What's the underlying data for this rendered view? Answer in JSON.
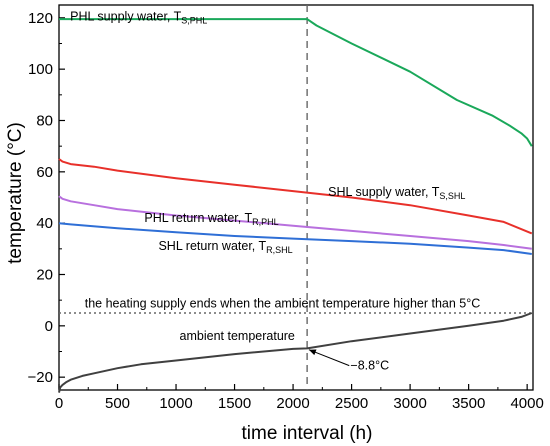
{
  "chart_data": {
    "type": "line",
    "xlabel": "time interval (h)",
    "ylabel": "temperature (°C)",
    "xlim": [
      0,
      4050
    ],
    "ylim": [
      -25,
      125
    ],
    "xticks": [
      0,
      500,
      1000,
      1500,
      2000,
      2500,
      3000,
      3500,
      4000
    ],
    "yticks": [
      -20,
      0,
      20,
      40,
      60,
      80,
      100,
      120
    ],
    "grid": false,
    "legend": "none",
    "series": [
      {
        "name": "PHL supply water, T_S,PHL",
        "color": "#1aa85a",
        "x": [
          0,
          2120,
          2200,
          2500,
          3000,
          3400,
          3700,
          3850,
          3950,
          4000,
          4040
        ],
        "y": [
          119.5,
          119.5,
          117,
          110,
          99,
          88,
          82,
          78,
          75,
          73,
          70
        ]
      },
      {
        "name": "SHL supply water, T_S,SHL",
        "color": "#e8302a",
        "x": [
          0,
          30,
          100,
          300,
          500,
          1000,
          1500,
          2000,
          2500,
          3000,
          3500,
          3800,
          4040
        ],
        "y": [
          65,
          64,
          63,
          62,
          60.5,
          57.5,
          55,
          52.5,
          50,
          47,
          43,
          40.5,
          36
        ]
      },
      {
        "name": "PHL return water, T_R,PHL",
        "color": "#b870de",
        "x": [
          0,
          30,
          100,
          300,
          500,
          1000,
          1500,
          2000,
          2500,
          3000,
          3500,
          3800,
          4040
        ],
        "y": [
          50.5,
          49.5,
          48.5,
          47,
          45.5,
          43,
          41,
          39,
          37,
          35,
          33,
          31.5,
          30
        ]
      },
      {
        "name": "SHL return water, T_R,SHL",
        "color": "#2f6fd6",
        "x": [
          0,
          100,
          500,
          1000,
          1500,
          2000,
          2500,
          3000,
          3500,
          3800,
          4040
        ],
        "y": [
          40,
          39.5,
          38,
          36.5,
          35,
          34,
          33,
          32,
          30.5,
          29.5,
          28
        ]
      },
      {
        "name": "ambient temperature",
        "color": "#404040",
        "x": [
          0,
          10,
          30,
          60,
          100,
          200,
          300,
          500,
          700,
          1000,
          1500,
          2000,
          2120,
          2500,
          3000,
          3500,
          3800,
          3950,
          4040
        ],
        "y": [
          -26,
          -24,
          -23,
          -22,
          -21,
          -19.5,
          -18.5,
          -16.5,
          -15,
          -13.5,
          -11,
          -9,
          -8.8,
          -6,
          -3,
          0,
          2,
          3.5,
          5
        ]
      }
    ],
    "reference_lines": [
      {
        "orientation": "vertical",
        "x": 2120,
        "style": "dashed"
      },
      {
        "orientation": "horizontal",
        "y": 5,
        "style": "dotted"
      }
    ],
    "annotations": {
      "phl_supply": {
        "text": "PHL supply water, T",
        "sub": "S,PHL",
        "x": 95,
        "y": 119
      },
      "shl_supply": {
        "text": "SHL supply water, T",
        "sub": "S,SHL",
        "x": 2300,
        "y": 50.5
      },
      "phl_return": {
        "text": "PHL return water, T",
        "sub": "R,PHL",
        "x": 730,
        "y": 40.5
      },
      "shl_return": {
        "text": "SHL return water, T",
        "sub": "R,SHL",
        "x": 850,
        "y": 29.5
      },
      "heating_end": {
        "text": "the heating supply ends when the ambient temperature higher than 5°C",
        "x": 220,
        "y": 7.2
      },
      "ambient": {
        "text": "ambient temperature",
        "x": 1030,
        "y": -5.5
      },
      "min_point": {
        "text": "−8.8°C",
        "x": 2490,
        "y": -17,
        "arrow_from": [
          2480,
          -15.5
        ],
        "arrow_to": [
          2135,
          -9.3
        ]
      }
    }
  }
}
